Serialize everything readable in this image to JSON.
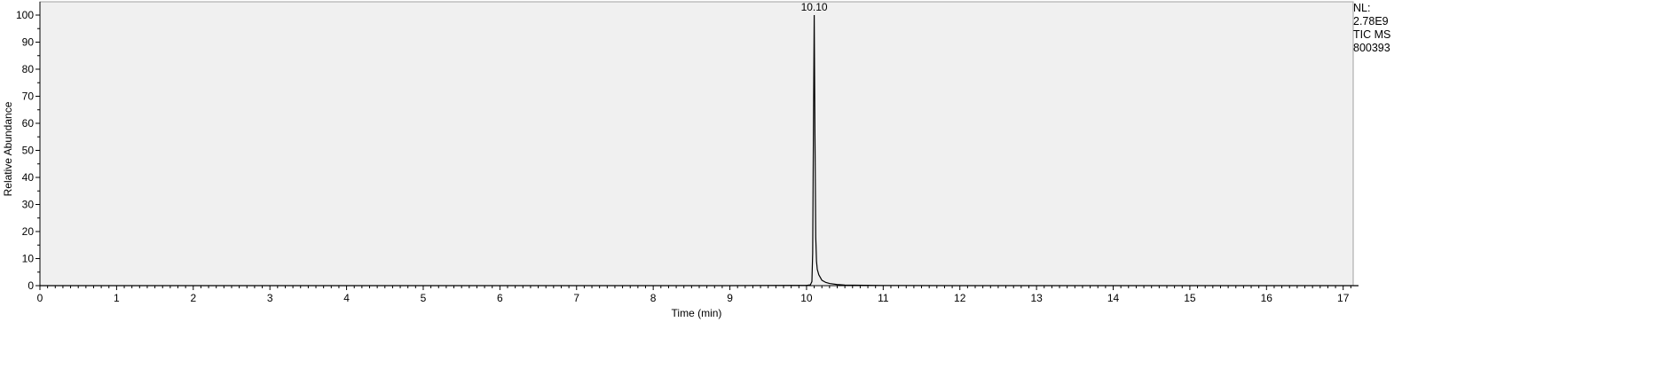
{
  "chart_data": {
    "type": "line",
    "title": "",
    "xlabel": "Time (min)",
    "ylabel": "Relative Abundance",
    "xlim": [
      0,
      17.2
    ],
    "ylim": [
      0,
      100
    ],
    "x_ticks": [
      0,
      1,
      2,
      3,
      4,
      5,
      6,
      7,
      8,
      9,
      10,
      11,
      12,
      13,
      14,
      15,
      16,
      17
    ],
    "y_ticks": [
      0,
      10,
      20,
      30,
      40,
      50,
      60,
      70,
      80,
      90,
      100
    ],
    "x_tick_labels": [
      "0",
      "1",
      "2",
      "3",
      "4",
      "5",
      "6",
      "7",
      "8",
      "9",
      "10",
      "11",
      "12",
      "13",
      "14",
      "15",
      "16",
      "17"
    ],
    "y_tick_labels": [
      "0",
      "10",
      "20",
      "30",
      "40",
      "50",
      "60",
      "70",
      "80",
      "90",
      "100"
    ],
    "grid": false,
    "series": [
      {
        "x": [
          0,
          1,
          2,
          3,
          4,
          5,
          6,
          7,
          8,
          9,
          10.0,
          10.05,
          10.07,
          10.08,
          10.09,
          10.1,
          10.11,
          10.12,
          10.13,
          10.14,
          10.16,
          10.18,
          10.2,
          10.25,
          10.3,
          10.4,
          10.5,
          11,
          12,
          13,
          14,
          15,
          16,
          17,
          17.2
        ],
        "y": [
          0,
          0,
          0,
          0,
          0,
          0,
          0,
          0,
          0,
          0,
          0.1,
          0.3,
          1.5,
          12,
          58,
          100,
          55,
          18,
          9,
          6,
          4,
          3,
          2,
          1.2,
          0.8,
          0.4,
          0.2,
          0.05,
          0,
          0,
          0,
          0,
          0,
          0,
          0
        ]
      }
    ],
    "peak_labels": [
      {
        "x": 10.1,
        "y": 100,
        "label": "10.10"
      }
    ]
  },
  "annotations": {
    "nl_label": "NL:",
    "nl_value": "2.78E9",
    "scan_type": "TIC  MS",
    "sample_id": "800393"
  },
  "colors": {
    "plot_background": "#f0f0f0",
    "trace": "#000000",
    "axis": "#000000"
  }
}
